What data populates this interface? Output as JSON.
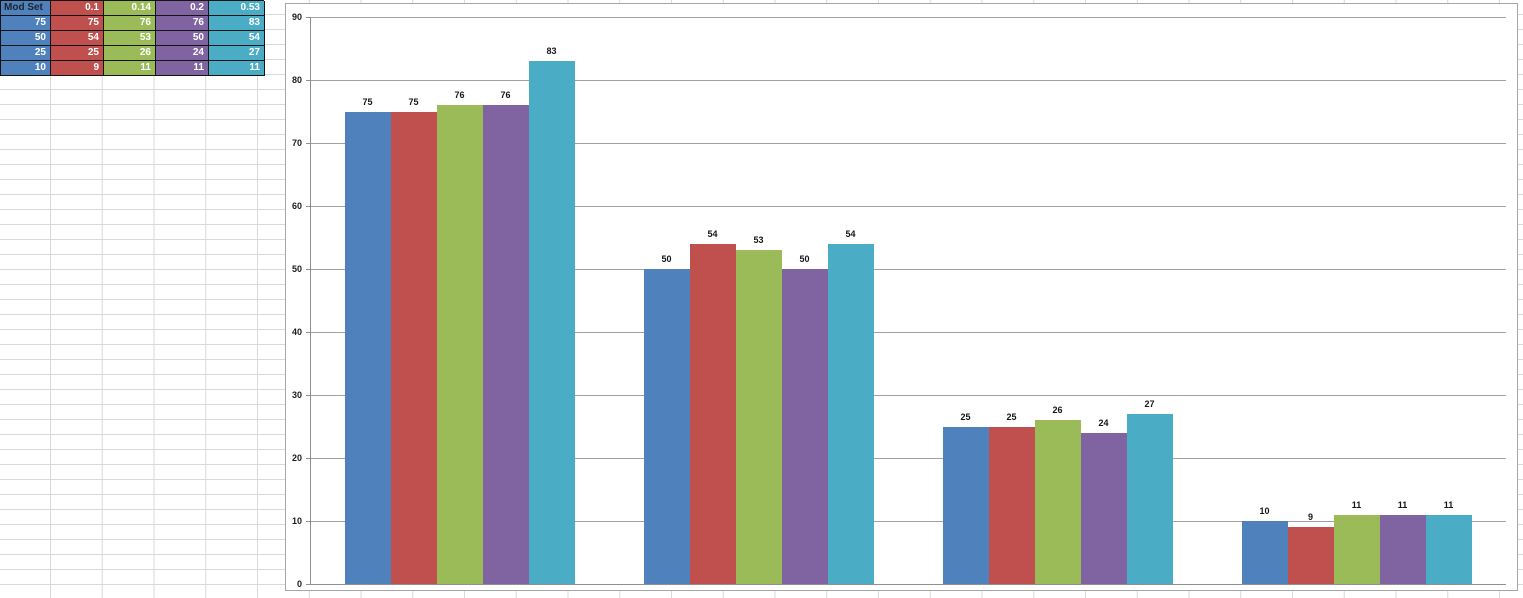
{
  "table": {
    "header": [
      "Mod Set",
      "0.1",
      "0.14",
      "0.2",
      "0.53"
    ],
    "rows": [
      [
        "75",
        "75",
        "76",
        "76",
        "83"
      ],
      [
        "50",
        "54",
        "53",
        "50",
        "54"
      ],
      [
        "25",
        "25",
        "26",
        "24",
        "27"
      ],
      [
        "10",
        "9",
        "11",
        "11",
        "11"
      ]
    ]
  },
  "chart_data": {
    "type": "bar",
    "title": "",
    "xlabel": "",
    "ylabel": "",
    "categories": [
      "75",
      "50",
      "25",
      "10"
    ],
    "series": [
      {
        "name": "Mod Set",
        "color": "#4F81BD",
        "values": [
          75,
          50,
          25,
          10
        ]
      },
      {
        "name": "0.1",
        "color": "#C0504D",
        "values": [
          75,
          54,
          25,
          9
        ]
      },
      {
        "name": "0.14",
        "color": "#9BBB59",
        "values": [
          76,
          53,
          26,
          11
        ]
      },
      {
        "name": "0.2",
        "color": "#8064A2",
        "values": [
          76,
          50,
          24,
          11
        ]
      },
      {
        "name": "0.53",
        "color": "#4BACC6",
        "values": [
          83,
          54,
          27,
          11
        ]
      }
    ],
    "ylim": [
      0,
      90
    ],
    "ytick_step": 10,
    "grid": true,
    "data_labels": true,
    "legend": "none",
    "category_axis_labels_visible": false
  }
}
